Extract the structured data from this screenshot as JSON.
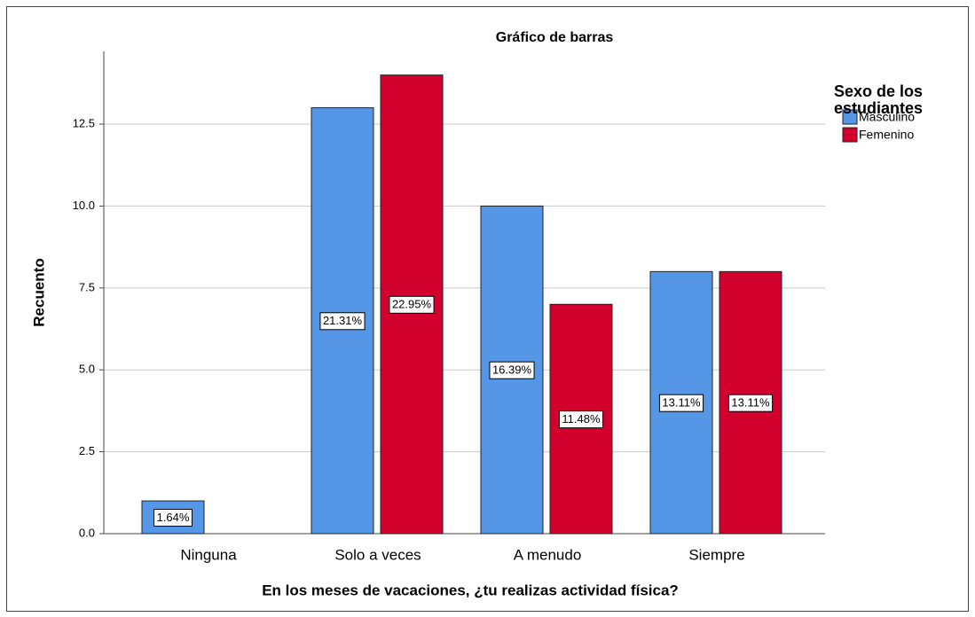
{
  "chart_data": {
    "type": "bar",
    "title": "Gráfico de barras",
    "x_label": "En los meses de vacaciones, ¿tu realizas actividad física?",
    "y_label": "Recuento",
    "legend_title": "Sexo de los estudiantes",
    "legend_position": "right",
    "categories": [
      "Ninguna",
      "Solo a veces",
      "A menudo",
      "Siempre"
    ],
    "series": [
      {
        "name": "Masculino",
        "color": "#5596e6",
        "values": [
          1,
          13,
          10,
          8
        ],
        "percent_labels": [
          "1.64%",
          "21.31%",
          "16.39%",
          "13.11%"
        ]
      },
      {
        "name": "Femenino",
        "color": "#d2002d",
        "values": [
          null,
          14,
          7,
          8
        ],
        "percent_labels": [
          null,
          "22.95%",
          "11.48%",
          "13.11%"
        ]
      }
    ],
    "ylim": [
      0,
      14.72
    ],
    "yticks": [
      {
        "value": 0,
        "label": "0.0"
      },
      2.5,
      {
        "value": 5,
        "label": "5.0"
      },
      7.5,
      {
        "value": 10,
        "label": "10.0"
      },
      12.5
    ],
    "grid": true
  }
}
